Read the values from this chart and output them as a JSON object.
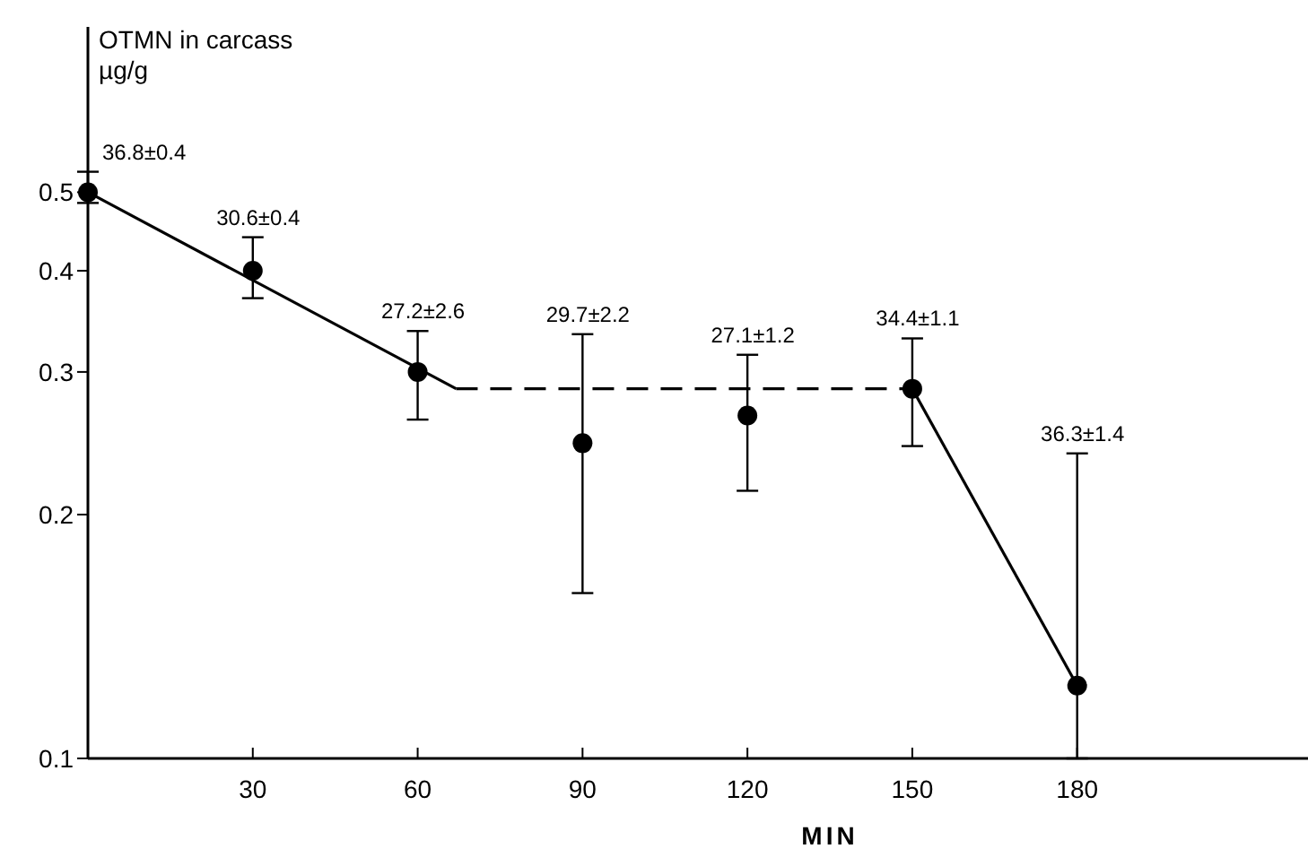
{
  "chart_data": {
    "type": "scatter",
    "ylabel": "OTMN in carcass\nµg/g",
    "xlabel": "MIN",
    "log": "y",
    "grid": false,
    "xlim": [
      0,
      222
    ],
    "xticks": [
      30,
      60,
      90,
      120,
      150,
      180
    ],
    "ylim": [
      0.1,
      0.8
    ],
    "yticks": [
      0.1,
      0.2,
      0.3,
      0.4,
      0.5
    ],
    "series": [
      {
        "type": "line",
        "color": "#000000",
        "line_style": "solid",
        "marker": "none",
        "x": [
          0,
          67
        ],
        "values": [
          0.5,
          0.286
        ]
      },
      {
        "type": "line",
        "color": "#000000",
        "line_style": "dashed",
        "marker": "none",
        "x": [
          67,
          150
        ],
        "values": [
          0.286,
          0.286
        ]
      },
      {
        "type": "line",
        "color": "#000000",
        "line_style": "solid",
        "marker": "none",
        "x": [
          150,
          180
        ],
        "values": [
          0.286,
          0.123
        ]
      },
      {
        "color": "#000000",
        "marker": "circle",
        "x": [
          0,
          30,
          60,
          90,
          120,
          150,
          180
        ],
        "values": [
          0.5,
          0.4,
          0.3,
          0.245,
          0.265,
          0.286,
          0.123
        ],
        "errors": [
          [
            0.485,
            0.53
          ],
          [
            0.37,
            0.44
          ],
          [
            0.262,
            0.337
          ],
          [
            0.16,
            0.334
          ],
          [
            0.214,
            0.315
          ],
          [
            0.243,
            0.33
          ],
          [
            0.1,
            0.238
          ]
        ]
      }
    ],
    "annotations": [
      {
        "text": "36.8±0.4",
        "x": 0,
        "y": 0.53
      },
      {
        "text": "30.6±0.4",
        "x": 30,
        "y": 0.44
      },
      {
        "text": "27.2±2.6",
        "x": 60,
        "y": 0.337
      },
      {
        "text": "29.7±2.2",
        "x": 90,
        "y": 0.334
      },
      {
        "text": "27.1±1.2",
        "x": 120,
        "y": 0.315
      },
      {
        "text": "34.4±1.1",
        "x": 150,
        "y": 0.33
      },
      {
        "text": "36.3±1.4",
        "x": 180,
        "y": 0.238
      }
    ]
  }
}
